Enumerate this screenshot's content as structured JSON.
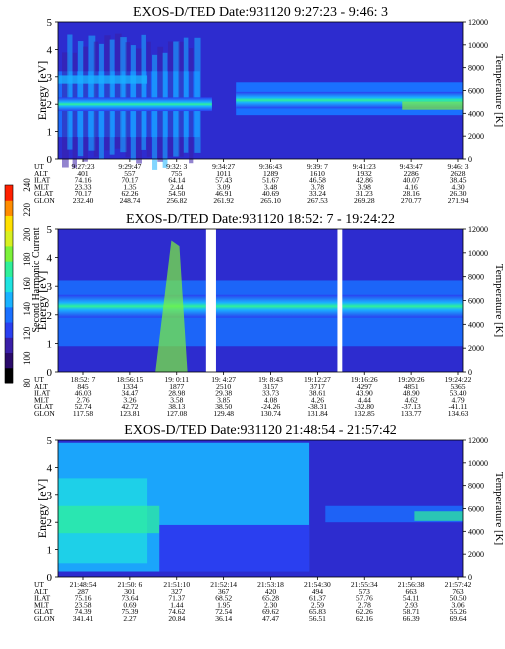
{
  "colorbar": {
    "label": "Second Harmonic Current",
    "ticks": [
      "80",
      "100",
      "120",
      "140",
      "160",
      "180",
      "200",
      "220",
      "240"
    ],
    "colors": [
      "#000000",
      "#2a0a6a",
      "#3a1fa8",
      "#2a3ff0",
      "#1a70ff",
      "#19b2ff",
      "#1fe3e0",
      "#2ff09a",
      "#7cf23a",
      "#d8f020",
      "#ffe000",
      "#ff8c00",
      "#ff2000"
    ]
  },
  "panels": [
    {
      "title": "EXOS-D/TED   Date:931120  9:27:23 - 9:46: 3",
      "ylabel_left": "Energy [eV]",
      "ylabel_right": "Temperature [K]",
      "y_ticks": [
        "0",
        "1",
        "2",
        "3",
        "4",
        "5"
      ],
      "t_ticks": [
        "0",
        "2000",
        "4000",
        "6000",
        "8000",
        "10000",
        "12000"
      ],
      "row_labels": [
        "UT",
        "ALT",
        "ILAT",
        "MLT",
        "GLAT",
        "GLON"
      ],
      "columns": [
        [
          "9:27:23",
          "401",
          "74.16",
          "23.33",
          "70.17",
          "232.40"
        ],
        [
          "9:29:47",
          "557",
          "70.17",
          "1.35",
          "62.26",
          "248.74"
        ],
        [
          "9:32: 3",
          "755",
          "64.14",
          "2.44",
          "54.50",
          "256.82"
        ],
        [
          "9:34:27",
          "1011",
          "57.43",
          "3.09",
          "46.91",
          "261.92"
        ],
        [
          "9:36:43",
          "1289",
          "51.67",
          "3.48",
          "40.69",
          "265.10"
        ],
        [
          "9:39: 7",
          "1610",
          "46.58",
          "3.78",
          "33.24",
          "267.53"
        ],
        [
          "9:41:23",
          "1932",
          "42.86",
          "3.98",
          "31.23",
          "269.28"
        ],
        [
          "9:43:47",
          "2286",
          "40.07",
          "4.16",
          "28.16",
          "270.77"
        ],
        [
          "9:46: 3",
          "2628",
          "38.45",
          "4.30",
          "26.30",
          "271.94"
        ]
      ]
    },
    {
      "title": "EXOS-D/TED   Date:931120  18:52: 7 - 19:24:22",
      "ylabel_left": "Energy [eV]",
      "ylabel_right": "Temperature [K]",
      "y_ticks": [
        "0",
        "1",
        "2",
        "3",
        "4",
        "5"
      ],
      "t_ticks": [
        "0",
        "2000",
        "4000",
        "6000",
        "8000",
        "10000",
        "12000"
      ],
      "row_labels": [
        "UT",
        "ALT",
        "ILAT",
        "MLT",
        "GLAT",
        "GLON"
      ],
      "columns": [
        [
          "18:52: 7",
          "845",
          "46.03",
          "2.76",
          "52.74",
          "117.58"
        ],
        [
          "18:56:15",
          "1334",
          "34.47",
          "3.26",
          "42.72",
          "123.81"
        ],
        [
          "19: 0:11",
          "1877",
          "28.98",
          "3.58",
          "38.13",
          "127.08"
        ],
        [
          "19: 4:27",
          "2510",
          "29.38",
          "3.85",
          "38.50",
          "129.48"
        ],
        [
          "19: 8:43",
          "3157",
          "33.73",
          "4.08",
          "-24.26",
          "130.74"
        ],
        [
          "19:12:27",
          "3717",
          "38.61",
          "4.26",
          "-38.31",
          "131.84"
        ],
        [
          "19:16:26",
          "4297",
          "43.90",
          "4.44",
          "-32.80",
          "132.85"
        ],
        [
          "19:20:26",
          "4851",
          "48.90",
          "4.62",
          "-37.13",
          "133.77"
        ],
        [
          "19:24:22",
          "5365",
          "53.40",
          "4.79",
          "-41.11",
          "134.63"
        ]
      ]
    },
    {
      "title": "EXOS-D/TED   Date:931120  21:48:54 - 21:57:42",
      "ylabel_left": "Energy [eV]",
      "ylabel_right": "Temperature [K]",
      "y_ticks": [
        "0",
        "1",
        "2",
        "3",
        "4",
        "5"
      ],
      "t_ticks": [
        "0",
        "2000",
        "4000",
        "6000",
        "8000",
        "10000",
        "12000"
      ],
      "row_labels": [
        "UT",
        "ALT",
        "ILAT",
        "MLT",
        "GLAT",
        "GLON"
      ],
      "columns": [
        [
          "21:48:54",
          "287",
          "75.16",
          "23.58",
          "74.39",
          "341.41"
        ],
        [
          "21:50: 6",
          "301",
          "73.64",
          "0.69",
          "75.39",
          "2.27"
        ],
        [
          "21:51:10",
          "327",
          "71.37",
          "1.44",
          "74.62",
          "20.84"
        ],
        [
          "21:52:14",
          "367",
          "68.52",
          "1.95",
          "72.54",
          "36.14"
        ],
        [
          "21:53:18",
          "420",
          "65.28",
          "2.30",
          "69.62",
          "47.47"
        ],
        [
          "21:54:30",
          "494",
          "61.37",
          "2.59",
          "65.83",
          "56.51"
        ],
        [
          "21:55:34",
          "573",
          "57.76",
          "2.78",
          "62.26",
          "62.16"
        ],
        [
          "21:56:38",
          "663",
          "54.11",
          "2.93",
          "58.71",
          "66.39"
        ],
        [
          "21:57:42",
          "763",
          "50.50",
          "3.06",
          "55.26",
          "69.64"
        ]
      ]
    }
  ]
}
